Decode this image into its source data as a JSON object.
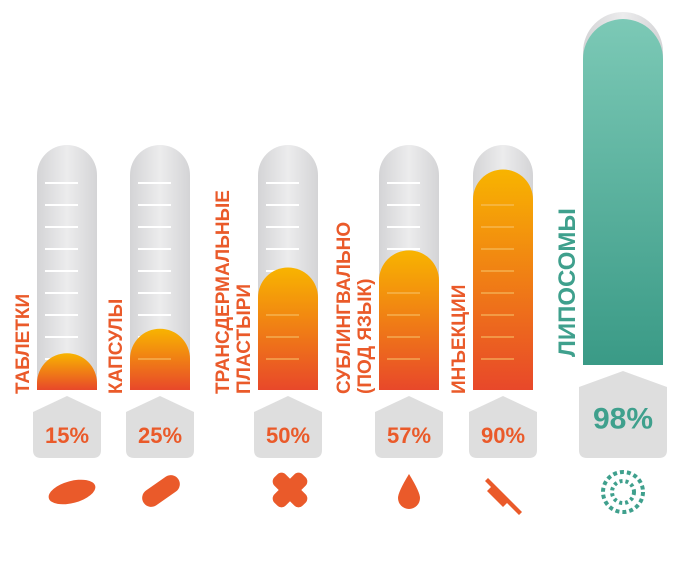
{
  "chart_data": {
    "type": "bar",
    "categories": [
      [
        "ТАБЛЕТКИ"
      ],
      [
        "КАПСУЛЫ"
      ],
      [
        "ТРАНСДЕРМАЛЬНЫЕ",
        "ПЛАСТЫРИ"
      ],
      [
        "СУБЛИНГВАЛЬНО",
        "(ПОД ЯЗЫК)"
      ],
      [
        "ИНЪЕКЦИИ"
      ],
      [
        "ЛИПОСОМЫ"
      ]
    ],
    "values": [
      15,
      25,
      50,
      57,
      90,
      98
    ],
    "value_labels": [
      "15%",
      "25%",
      "50%",
      "57%",
      "90%",
      "98%"
    ],
    "colors": [
      "#ea5a2a",
      "#ea5a2a",
      "#ea5a2a",
      "#ea5a2a",
      "#ea5a2a",
      "#3fa08d"
    ],
    "ylim": [
      0,
      100
    ]
  }
}
